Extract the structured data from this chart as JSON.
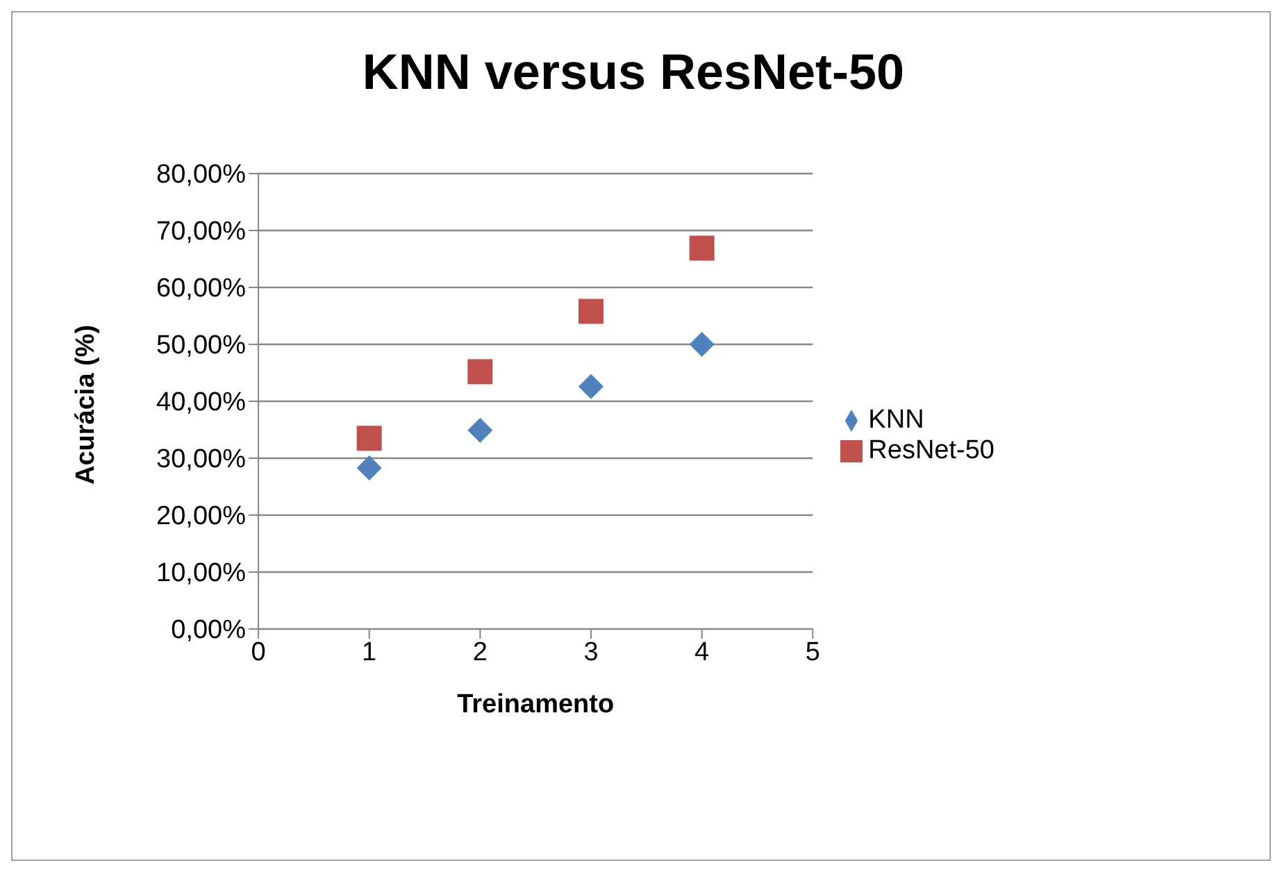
{
  "chart_data": {
    "type": "scatter",
    "title": "KNN versus ResNet-50",
    "xlabel": "Treinamento",
    "ylabel": "Acurácia (%)",
    "x": [
      1,
      2,
      3,
      4
    ],
    "series": [
      {
        "name": "KNN",
        "color": "#4f81bd",
        "marker": "diamond",
        "values": [
          28.3,
          34.9,
          42.6,
          50.0
        ]
      },
      {
        "name": "ResNet-50",
        "color": "#c0504d",
        "marker": "square",
        "values": [
          33.5,
          45.2,
          55.8,
          66.9
        ]
      }
    ],
    "xlim": [
      0,
      5
    ],
    "xticks": [
      0,
      1,
      2,
      3,
      4,
      5
    ],
    "ylim": [
      0,
      80
    ],
    "yticks": [
      {
        "value": 0,
        "label": "0,00%"
      },
      {
        "value": 10,
        "label": "10,00%"
      },
      {
        "value": 20,
        "label": "20,00%"
      },
      {
        "value": 30,
        "label": "30,00%"
      },
      {
        "value": 40,
        "label": "40,00%"
      },
      {
        "value": 50,
        "label": "50,00%"
      },
      {
        "value": 60,
        "label": "60,00%"
      },
      {
        "value": 70,
        "label": "70,00%"
      },
      {
        "value": 80,
        "label": "80,00%"
      }
    ],
    "grid": "y",
    "legend": "right"
  }
}
